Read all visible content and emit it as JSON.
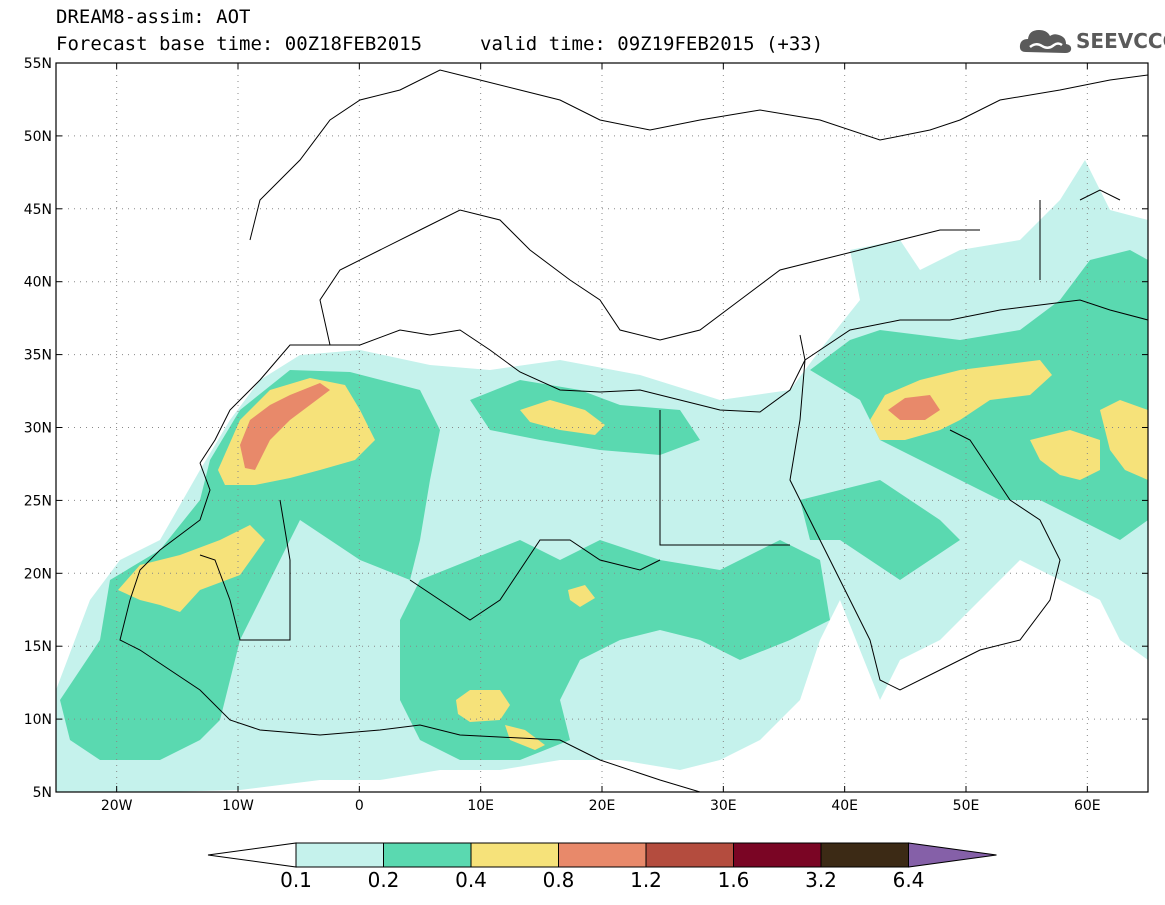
{
  "header": {
    "line1": "DREAM8-assim: AOT",
    "line2_left": "Forecast base time: 00Z18FEB2015",
    "line2_right": "valid time: 09Z19FEB2015 (+33)"
  },
  "logo": {
    "text": "SEEVCCC",
    "icon": "cloud-icon"
  },
  "map": {
    "lon_range": [
      -25,
      65
    ],
    "lat_range": [
      5,
      55
    ],
    "lat_ticks": [
      {
        "value": 55,
        "label": "55N"
      },
      {
        "value": 50,
        "label": "50N"
      },
      {
        "value": 45,
        "label": "45N"
      },
      {
        "value": 40,
        "label": "40N"
      },
      {
        "value": 35,
        "label": "35N"
      },
      {
        "value": 30,
        "label": "30N"
      },
      {
        "value": 25,
        "label": "25N"
      },
      {
        "value": 20,
        "label": "20N"
      },
      {
        "value": 15,
        "label": "15N"
      },
      {
        "value": 10,
        "label": "10N"
      },
      {
        "value": 5,
        "label": "5N"
      }
    ],
    "lon_ticks": [
      {
        "value": -20,
        "label": "20W"
      },
      {
        "value": -10,
        "label": "10W"
      },
      {
        "value": 0,
        "label": "0"
      },
      {
        "value": 10,
        "label": "10E"
      },
      {
        "value": 20,
        "label": "20E"
      },
      {
        "value": 30,
        "label": "30E"
      },
      {
        "value": 40,
        "label": "40E"
      },
      {
        "value": 50,
        "label": "50E"
      },
      {
        "value": 60,
        "label": "60E"
      }
    ],
    "grid": "dotted"
  },
  "colorbar": {
    "labels": [
      "0.1",
      "0.2",
      "0.4",
      "0.8",
      "1.2",
      "1.6",
      "3.2",
      "6.4"
    ],
    "colors": [
      "#ffffff",
      "#c5f2ec",
      "#5ad9b0",
      "#f6e27a",
      "#e8896a",
      "#b44c3e",
      "#7a0524",
      "#3c2a15",
      "#8560a8"
    ]
  },
  "chart_data": {
    "type": "heatmap",
    "variable": "AOT",
    "levels": [
      0.1,
      0.2,
      0.4,
      0.8,
      1.2,
      1.6,
      3.2,
      6.4
    ],
    "plumes": [
      {
        "lon": -4,
        "lat": 30,
        "peak": 1.2
      },
      {
        "lon": 45.5,
        "lat": 30.5,
        "peak": 1.2
      },
      {
        "lon": -15,
        "lat": 20,
        "peak": 0.8
      },
      {
        "lon": 17,
        "lat": 30,
        "peak": 0.8
      },
      {
        "lon": 10,
        "lat": 11,
        "peak": 0.8
      }
    ]
  }
}
